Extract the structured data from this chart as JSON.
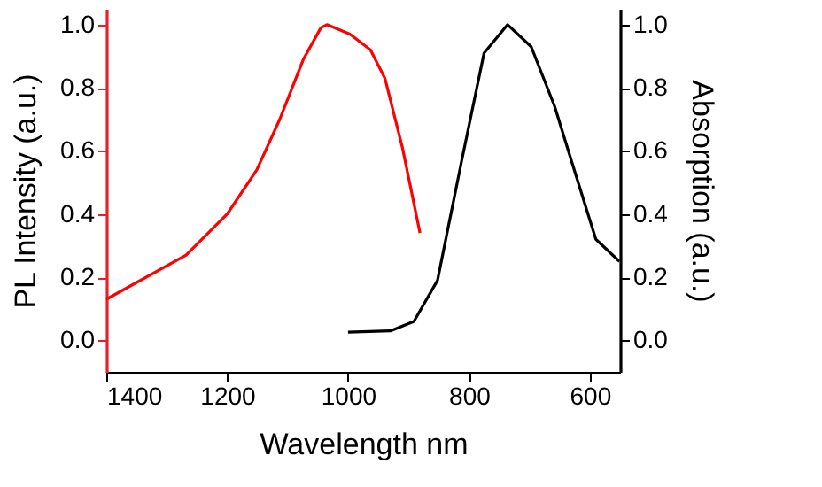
{
  "chart_data": {
    "type": "line",
    "xlabel": "Wavelength nm",
    "ylabel": "PL Intensity (a.u.)",
    "y2label": "Absorption (a.u.)",
    "xlim": [
      1400,
      550
    ],
    "xticks": [
      1400,
      1200,
      1000,
      800,
      600
    ],
    "ylim": [
      -0.1,
      1.05
    ],
    "yticks": [
      {
        "value": 0,
        "label": "0.0"
      },
      {
        "value": 0.2,
        "label": "0.2"
      },
      {
        "value": 0.4,
        "label": "0.4"
      },
      {
        "value": 0.6,
        "label": "0.6"
      },
      {
        "value": 0.8,
        "label": "0.8"
      },
      {
        "value": 1,
        "label": "1.0"
      }
    ],
    "y2lim": [
      -0.1,
      1.05
    ],
    "y2ticks": [
      {
        "value": 0,
        "label": "0.0"
      },
      {
        "value": 0.2,
        "label": "0.2"
      },
      {
        "value": 0.4,
        "label": "0.4"
      },
      {
        "value": 0.6,
        "label": "0.6"
      },
      {
        "value": 0.8,
        "label": "0.8"
      },
      {
        "value": 1,
        "label": "1.0"
      }
    ],
    "grid": false,
    "marker": "none",
    "line_style": "solid",
    "series": [
      {
        "color": "#ff0000",
        "x": [
          1400,
          1268,
          1200,
          1151,
          1113,
          1074,
          1045,
          1035,
          997,
          963,
          939,
          910,
          881
        ],
        "values": [
          0.13,
          0.27,
          0.4,
          0.54,
          0.7,
          0.89,
          0.99,
          1.0,
          0.97,
          0.92,
          0.83,
          0.61,
          0.34
        ]
      },
      {
        "color": "#000000",
        "axis": "y2",
        "x": [
          1000,
          930,
          891,
          852,
          813,
          775,
          736,
          697,
          658,
          629,
          590,
          551
        ],
        "values": [
          0.026,
          0.03,
          0.06,
          0.19,
          0.56,
          0.91,
          1.0,
          0.93,
          0.74,
          0.56,
          0.32,
          0.25
        ]
      }
    ]
  }
}
